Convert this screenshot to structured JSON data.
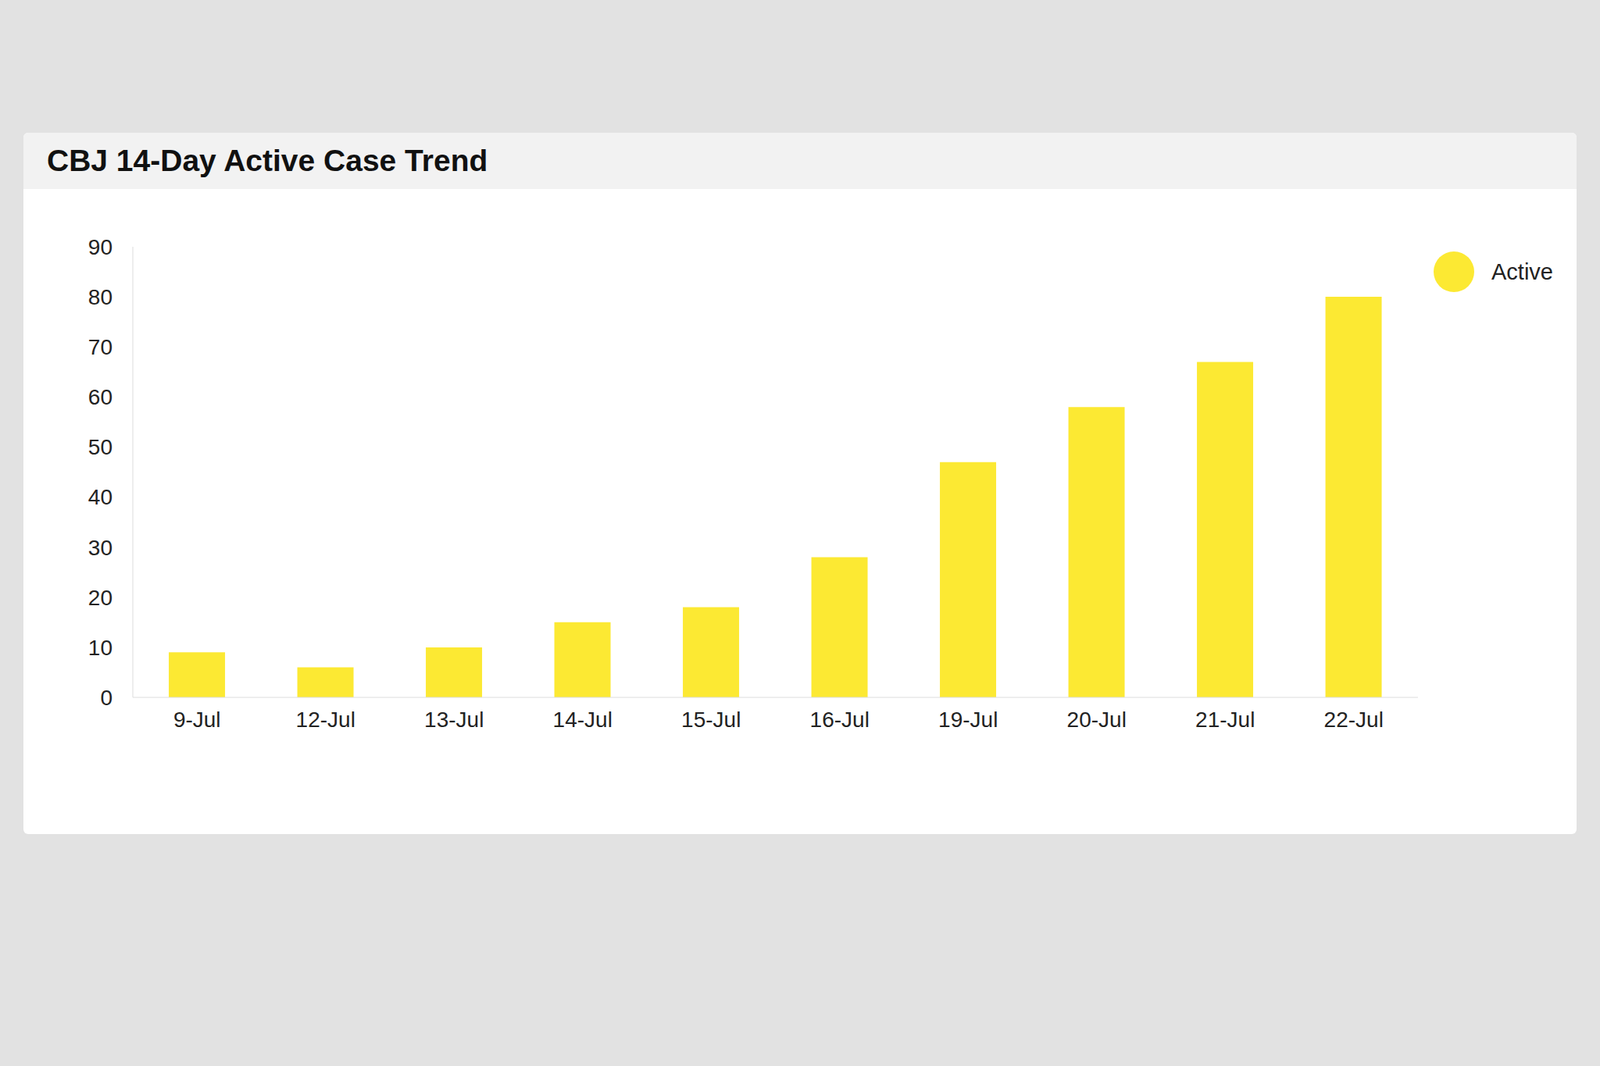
{
  "chart_data": {
    "type": "bar",
    "title": "CBJ 14-Day Active Case Trend",
    "categories": [
      "9-Jul",
      "12-Jul",
      "13-Jul",
      "14-Jul",
      "15-Jul",
      "16-Jul",
      "19-Jul",
      "20-Jul",
      "21-Jul",
      "22-Jul"
    ],
    "series": [
      {
        "name": "Active",
        "color": "#fce933",
        "values": [
          9,
          6,
          10,
          15,
          18,
          28,
          47,
          58,
          67,
          80
        ]
      }
    ],
    "ylim": [
      0,
      90
    ],
    "yticks": [
      0,
      10,
      20,
      30,
      40,
      50,
      60,
      70,
      80,
      90
    ],
    "grid": false,
    "legend": "top right"
  }
}
